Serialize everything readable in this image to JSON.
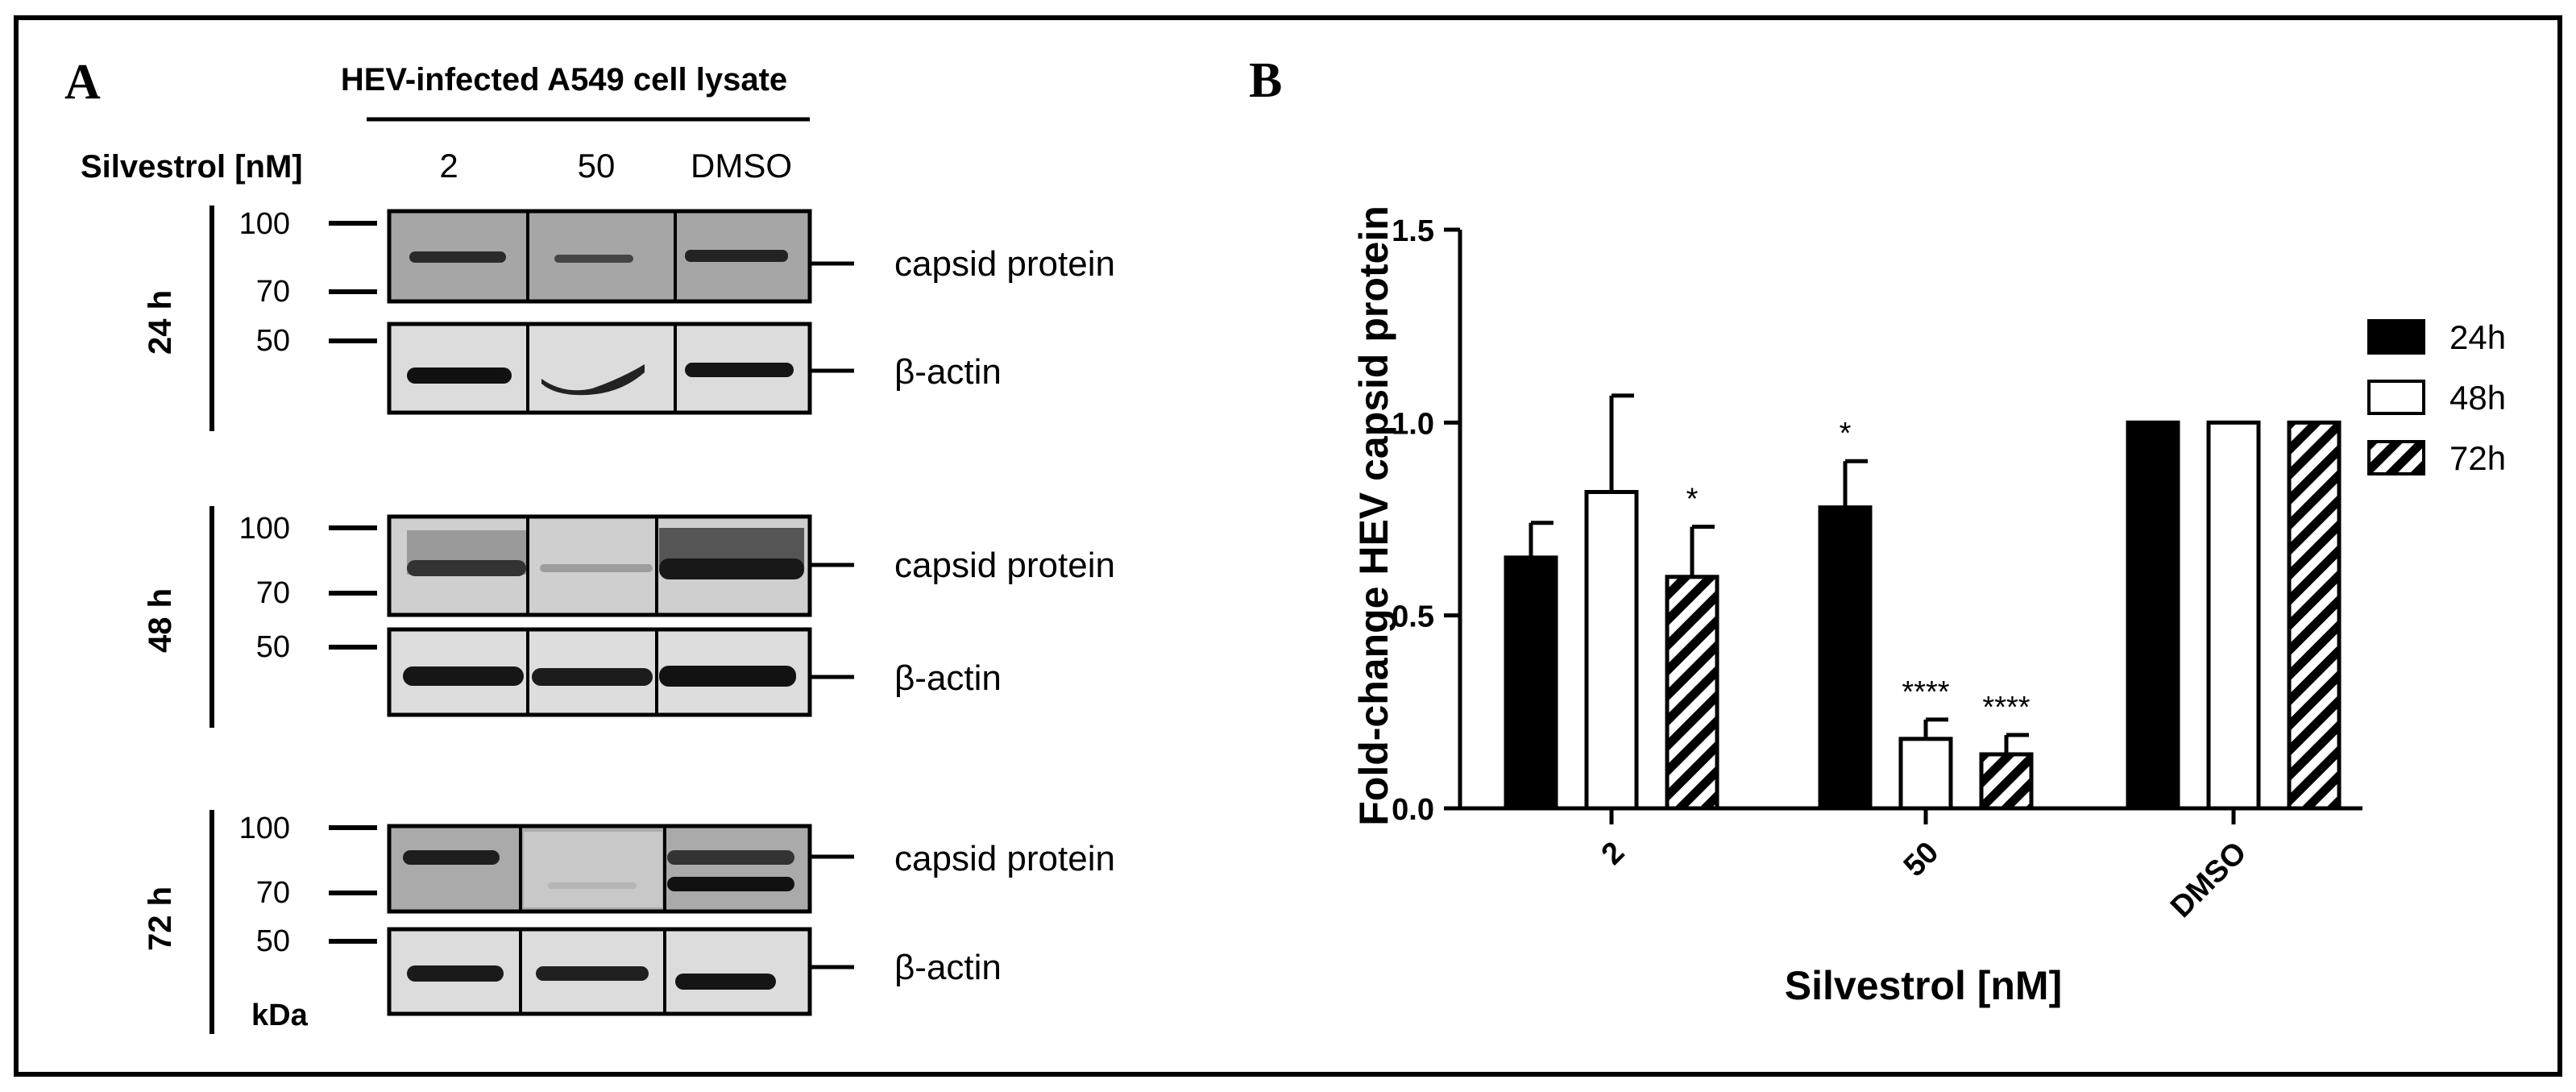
{
  "panel_a": {
    "letter": "A",
    "header": "HEV-infected A549 cell lysate",
    "treatment_label": "Silvestrol [nM]",
    "lanes": [
      "2",
      "50",
      "DMSO"
    ],
    "timepoints": [
      "24 h",
      "48 h",
      "72 h"
    ],
    "markers": {
      "m100": "100",
      "m70": "70",
      "m50": "50"
    },
    "band_labels": {
      "capsid": "capsid protein",
      "actin": "β-actin"
    },
    "unit": "kDa"
  },
  "panel_b": {
    "letter": "B"
  },
  "colors": {
    "bar_24h": "#000000",
    "bar_48h": "#ffffff",
    "bar_72h": "hatched",
    "blot_dark_bg": "#a8a8a8",
    "blot_light_bg": "#dcdcdc"
  },
  "chart_data": {
    "type": "bar",
    "title": "",
    "xlabel": "Silvestrol [nM]",
    "ylabel": "Fold-change HEV capsid protein",
    "ylim": [
      0,
      1.5
    ],
    "yticks": [
      "0.0",
      "0.5",
      "1.0",
      "1.5"
    ],
    "grid": false,
    "legend_position": "right",
    "categories": [
      "2",
      "50",
      "DMSO"
    ],
    "series": [
      {
        "name": "24h",
        "fill": "solid",
        "values": [
          0.65,
          0.78,
          1.0
        ],
        "errors": [
          0.09,
          0.12,
          0
        ],
        "significance": [
          "",
          "*",
          ""
        ]
      },
      {
        "name": "48h",
        "fill": "open",
        "values": [
          0.82,
          0.18,
          1.0
        ],
        "errors": [
          0.25,
          0.05,
          0
        ],
        "significance": [
          "",
          "****",
          ""
        ]
      },
      {
        "name": "72h",
        "fill": "hatched",
        "values": [
          0.6,
          0.14,
          1.0
        ],
        "errors": [
          0.13,
          0.05,
          0
        ],
        "significance": [
          "*",
          "****",
          ""
        ]
      }
    ]
  }
}
